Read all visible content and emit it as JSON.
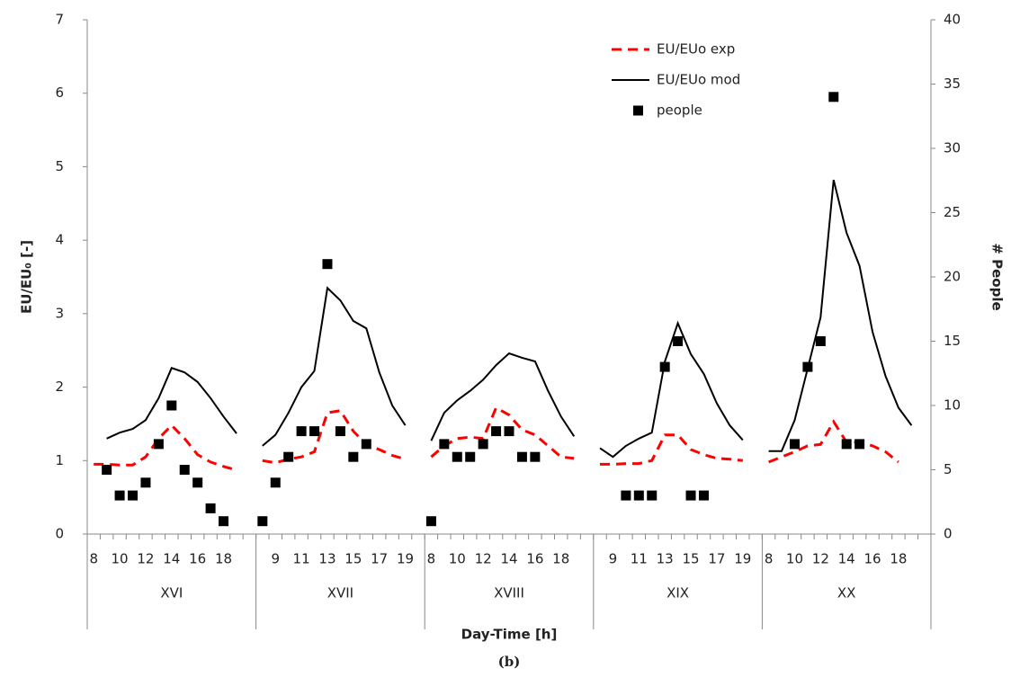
{
  "chart_data": {
    "type": "line",
    "x_label": "Day-Time [h]",
    "y_label": "EU/EU₀ [-]",
    "y2_label": "# People",
    "caption": "(b)",
    "ylim": [
      0,
      7
    ],
    "yticks": [
      0,
      1,
      2,
      3,
      4,
      5,
      6,
      7
    ],
    "y2lim": [
      0,
      40
    ],
    "y2ticks": [
      0,
      5,
      10,
      15,
      20,
      25,
      30,
      35,
      40
    ],
    "grid": false,
    "legend": "top-right",
    "category_groups": [
      "XVI",
      "XVII",
      "XVIII",
      "XIX",
      "XX"
    ],
    "categories": [
      "8",
      null,
      "10",
      null,
      "12",
      null,
      "14",
      null,
      "16",
      null,
      "18",
      null,
      null,
      null,
      "9",
      null,
      "11",
      null,
      "13",
      null,
      "15",
      null,
      "17",
      null,
      "19",
      null,
      "8",
      null,
      "10",
      null,
      "12",
      null,
      "14",
      null,
      "16",
      null,
      "18",
      null,
      null,
      null,
      "9",
      null,
      "11",
      null,
      "13",
      null,
      "15",
      null,
      "17",
      null,
      "19",
      null,
      "8",
      null,
      "10",
      null,
      "12",
      null,
      "14",
      null,
      "16",
      null,
      "18",
      null,
      null
    ],
    "series": [
      {
        "name": "EU/EUo exp",
        "color": "#ff0000",
        "dash": true,
        "marker": false,
        "values": [
          0.95,
          0.95,
          0.94,
          0.94,
          1.05,
          1.3,
          1.48,
          1.3,
          1.08,
          0.98,
          0.92,
          0.87,
          null,
          1.0,
          0.97,
          1.02,
          1.05,
          1.12,
          1.65,
          1.68,
          1.4,
          1.22,
          1.15,
          1.07,
          1.02,
          null,
          1.05,
          1.2,
          1.3,
          1.32,
          1.3,
          1.72,
          1.62,
          1.42,
          1.35,
          1.2,
          1.05,
          1.03,
          null,
          0.95,
          0.95,
          0.96,
          0.96,
          1.0,
          1.35,
          1.35,
          1.15,
          1.08,
          1.03,
          1.02,
          1.0,
          null,
          0.98,
          1.05,
          1.12,
          1.2,
          1.22,
          1.53,
          1.25,
          1.25,
          1.2,
          1.12,
          0.98,
          null,
          null
        ]
      },
      {
        "name": "EU/EUo mod",
        "color": "#000000",
        "dash": false,
        "marker": false,
        "values": [
          null,
          1.3,
          1.38,
          1.43,
          1.55,
          1.85,
          2.26,
          2.2,
          2.07,
          1.85,
          1.6,
          1.37,
          null,
          1.2,
          1.35,
          1.65,
          2.0,
          2.22,
          3.35,
          3.18,
          2.9,
          2.8,
          2.2,
          1.75,
          1.48,
          null,
          1.27,
          1.65,
          1.82,
          1.95,
          2.1,
          2.3,
          2.46,
          2.4,
          2.35,
          1.95,
          1.6,
          1.33,
          null,
          1.17,
          1.05,
          1.2,
          1.3,
          1.38,
          2.35,
          2.87,
          2.45,
          2.18,
          1.78,
          1.48,
          1.28,
          null,
          1.13,
          1.13,
          1.55,
          2.25,
          2.95,
          4.82,
          4.1,
          3.65,
          2.75,
          2.15,
          1.72,
          1.48,
          null
        ]
      },
      {
        "name": "people",
        "color": "#000000",
        "marker": true,
        "axis": "y2",
        "values": [
          null,
          5,
          3,
          3,
          4,
          7,
          10,
          5,
          4,
          2,
          1,
          null,
          null,
          1,
          4,
          6,
          8,
          8,
          21,
          8,
          6,
          7,
          null,
          null,
          null,
          null,
          1,
          7,
          6,
          6,
          7,
          8,
          8,
          6,
          6,
          null,
          null,
          null,
          null,
          null,
          null,
          3,
          3,
          3,
          13,
          15,
          3,
          3,
          null,
          null,
          null,
          null,
          null,
          null,
          7,
          13,
          15,
          34,
          7,
          7,
          null,
          null,
          null,
          null,
          null
        ]
      }
    ]
  }
}
